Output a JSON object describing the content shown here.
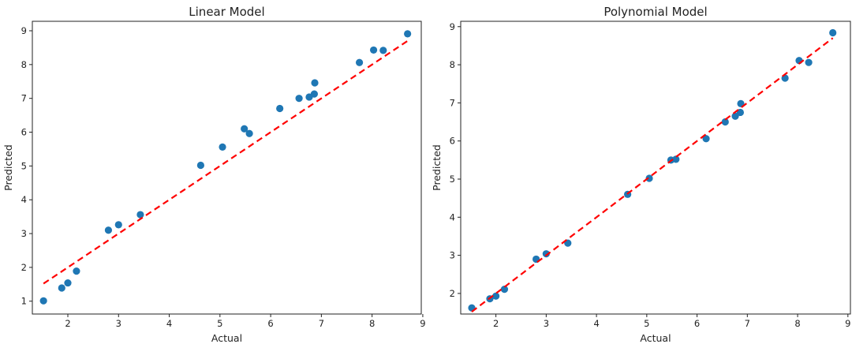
{
  "chart_data": [
    {
      "type": "scatter",
      "title": "Linear Model",
      "xlabel": "Actual",
      "ylabel": "Predicted",
      "xlim": [
        1.3,
        8.97
      ],
      "ylim": [
        0.62,
        9.28
      ],
      "xticks": [
        2,
        3,
        4,
        5,
        6,
        7,
        8,
        9
      ],
      "yticks": [
        1,
        2,
        3,
        4,
        5,
        6,
        7,
        8,
        9
      ],
      "grid": false,
      "point_color": "#1f77b4",
      "line_color": "#ff0000",
      "points": [
        {
          "x": 1.52,
          "y": 1.01
        },
        {
          "x": 1.88,
          "y": 1.39
        },
        {
          "x": 2.0,
          "y": 1.54
        },
        {
          "x": 2.17,
          "y": 1.89
        },
        {
          "x": 2.8,
          "y": 3.1
        },
        {
          "x": 3.0,
          "y": 3.26
        },
        {
          "x": 3.43,
          "y": 3.56
        },
        {
          "x": 4.62,
          "y": 5.02
        },
        {
          "x": 5.05,
          "y": 5.56
        },
        {
          "x": 5.48,
          "y": 6.1
        },
        {
          "x": 5.58,
          "y": 5.96
        },
        {
          "x": 6.18,
          "y": 6.7
        },
        {
          "x": 6.56,
          "y": 7.0
        },
        {
          "x": 6.76,
          "y": 7.04
        },
        {
          "x": 6.86,
          "y": 7.13
        },
        {
          "x": 6.87,
          "y": 7.46
        },
        {
          "x": 7.75,
          "y": 8.06
        },
        {
          "x": 8.03,
          "y": 8.43
        },
        {
          "x": 8.22,
          "y": 8.42
        },
        {
          "x": 8.7,
          "y": 8.91
        }
      ],
      "reference_line": {
        "x": [
          1.52,
          8.7
        ],
        "y": [
          1.52,
          8.7
        ],
        "style": "dashed"
      }
    },
    {
      "type": "scatter",
      "title": "Polynomial Model",
      "xlabel": "Actual",
      "ylabel": "Predicted",
      "xlim": [
        1.3,
        9.05
      ],
      "ylim": [
        1.46,
        9.14
      ],
      "xticks": [
        2,
        3,
        4,
        5,
        6,
        7,
        8,
        9
      ],
      "yticks": [
        2,
        3,
        4,
        5,
        6,
        7,
        8,
        9
      ],
      "grid": false,
      "point_color": "#1f77b4",
      "line_color": "#ff0000",
      "points": [
        {
          "x": 1.52,
          "y": 1.62
        },
        {
          "x": 1.88,
          "y": 1.86
        },
        {
          "x": 2.0,
          "y": 1.93
        },
        {
          "x": 2.17,
          "y": 2.11
        },
        {
          "x": 2.8,
          "y": 2.9
        },
        {
          "x": 3.0,
          "y": 3.04
        },
        {
          "x": 3.43,
          "y": 3.32
        },
        {
          "x": 4.62,
          "y": 4.6
        },
        {
          "x": 5.05,
          "y": 5.02
        },
        {
          "x": 5.48,
          "y": 5.5
        },
        {
          "x": 5.58,
          "y": 5.52
        },
        {
          "x": 6.18,
          "y": 6.06
        },
        {
          "x": 6.56,
          "y": 6.5
        },
        {
          "x": 6.76,
          "y": 6.65
        },
        {
          "x": 6.86,
          "y": 6.75
        },
        {
          "x": 6.87,
          "y": 6.98
        },
        {
          "x": 7.75,
          "y": 7.65
        },
        {
          "x": 8.03,
          "y": 8.11
        },
        {
          "x": 8.22,
          "y": 8.06
        },
        {
          "x": 8.7,
          "y": 8.84
        }
      ],
      "reference_line": {
        "x": [
          1.52,
          8.7
        ],
        "y": [
          1.52,
          8.7
        ],
        "style": "dashed"
      }
    }
  ]
}
